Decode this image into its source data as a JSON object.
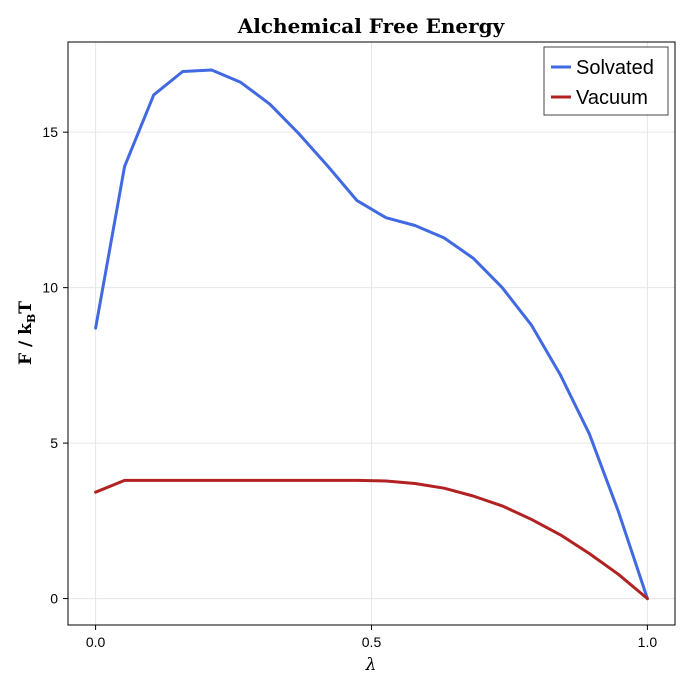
{
  "chart_data": {
    "type": "line",
    "title": "Alchemical Free Energy",
    "xlabel": "λ",
    "ylabel_main": "F / k",
    "ylabel_sub": "B",
    "ylabel_tail": "T",
    "xlim": [
      -0.05,
      1.05
    ],
    "ylim": [
      -0.85,
      17.9
    ],
    "xticks": [
      0.0,
      0.5,
      1.0
    ],
    "xtick_labels": [
      "0.0",
      "0.5",
      "1.0"
    ],
    "yticks": [
      0,
      5,
      10,
      15
    ],
    "ytick_labels": [
      "0",
      "5",
      "10",
      "15"
    ],
    "grid": true,
    "legend_position": "top-right",
    "series": [
      {
        "name": "Solvated",
        "color": "#4169e1",
        "x": [
          0.0,
          0.0526,
          0.1053,
          0.1579,
          0.2105,
          0.2632,
          0.3158,
          0.3684,
          0.4211,
          0.4737,
          0.5263,
          0.5789,
          0.6316,
          0.6842,
          0.7368,
          0.7895,
          0.8421,
          0.8947,
          0.9474,
          1.0
        ],
        "y": [
          8.7,
          13.9,
          16.2,
          16.95,
          17.0,
          16.6,
          15.9,
          14.95,
          13.9,
          12.8,
          12.25,
          12.0,
          11.6,
          10.95,
          10.0,
          8.8,
          7.2,
          5.3,
          2.8,
          0.0
        ]
      },
      {
        "name": "Vacuum",
        "color": "#b22222",
        "x": [
          0.0,
          0.0526,
          0.1053,
          0.1579,
          0.2105,
          0.2632,
          0.3158,
          0.3684,
          0.4211,
          0.4737,
          0.5263,
          0.5789,
          0.6316,
          0.6842,
          0.7368,
          0.7895,
          0.8421,
          0.8947,
          0.9474,
          1.0
        ],
        "y": [
          3.42,
          3.8,
          3.8,
          3.8,
          3.8,
          3.8,
          3.8,
          3.8,
          3.8,
          3.8,
          3.78,
          3.7,
          3.55,
          3.3,
          2.98,
          2.55,
          2.05,
          1.45,
          0.78,
          0.0
        ]
      }
    ]
  }
}
